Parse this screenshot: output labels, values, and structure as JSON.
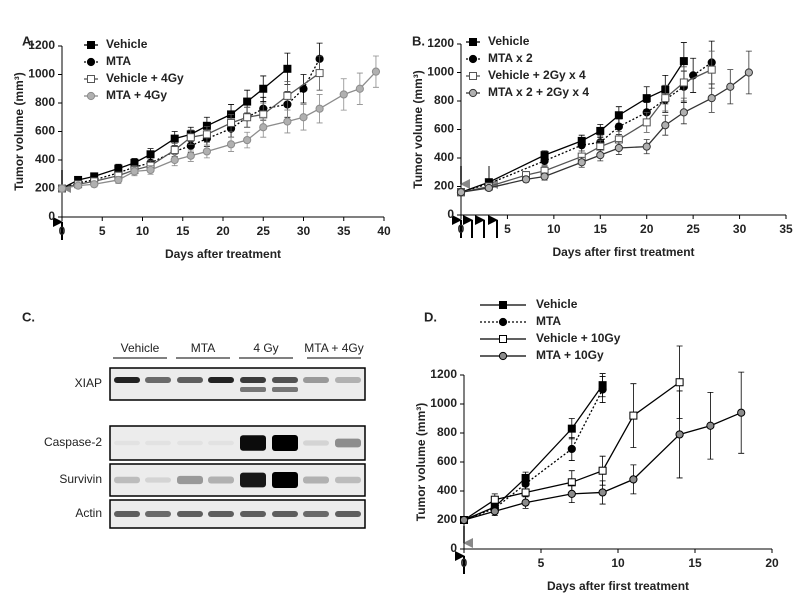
{
  "chart_data": [
    {
      "type": "line",
      "label": "A.",
      "xlabel": "Days after treatment",
      "ylabel": "Tumor volume (mm³)",
      "xlim": [
        0,
        40
      ],
      "xticks": [
        0,
        5,
        10,
        15,
        20,
        25,
        30,
        35,
        40
      ],
      "ylim": [
        0,
        1200
      ],
      "yticks": [
        0,
        200,
        400,
        600,
        800,
        1000,
        1200
      ],
      "series": [
        {
          "name": "Vehicle",
          "color": "#000000",
          "marker": "square",
          "marker_fill": "#000000",
          "dash": false,
          "x": [
            0,
            2,
            4,
            7,
            9,
            11,
            14,
            16,
            18,
            21,
            23,
            25,
            28
          ],
          "values": [
            200,
            260,
            285,
            340,
            380,
            440,
            550,
            580,
            640,
            720,
            810,
            900,
            1040
          ],
          "errors": [
            15,
            20,
            20,
            30,
            30,
            40,
            50,
            50,
            60,
            70,
            80,
            90,
            110
          ]
        },
        {
          "name": "MTA",
          "color": "#000000",
          "marker": "circle",
          "marker_fill": "#000000",
          "dash": true,
          "x": [
            0,
            2,
            4,
            7,
            9,
            11,
            14,
            16,
            18,
            21,
            23,
            25,
            28,
            30,
            32
          ],
          "values": [
            200,
            240,
            260,
            310,
            350,
            380,
            460,
            500,
            550,
            620,
            700,
            760,
            790,
            900,
            1110
          ],
          "errors": [
            15,
            20,
            20,
            25,
            30,
            35,
            40,
            45,
            55,
            60,
            70,
            80,
            90,
            100,
            110
          ]
        },
        {
          "name": "Vehicle + 4Gy",
          "color": "#555555",
          "marker": "square",
          "marker_fill": "#ffffff",
          "dash": false,
          "x": [
            0,
            2,
            4,
            7,
            9,
            11,
            14,
            16,
            18,
            21,
            23,
            25,
            28,
            32
          ],
          "values": [
            200,
            230,
            250,
            290,
            330,
            360,
            470,
            560,
            580,
            660,
            700,
            720,
            850,
            1010
          ],
          "errors": [
            15,
            20,
            20,
            25,
            30,
            35,
            45,
            50,
            55,
            60,
            70,
            80,
            100,
            120
          ]
        },
        {
          "name": "MTA + 4Gy",
          "color": "#8c8c8c",
          "marker": "circle",
          "marker_fill": "#b0b0b0",
          "dash": false,
          "x": [
            0,
            2,
            4,
            7,
            9,
            11,
            14,
            16,
            18,
            21,
            23,
            25,
            28,
            30,
            32,
            35,
            37,
            39
          ],
          "values": [
            200,
            220,
            230,
            260,
            320,
            330,
            400,
            430,
            460,
            510,
            540,
            630,
            670,
            700,
            760,
            860,
            900,
            1020
          ],
          "errors": [
            15,
            15,
            20,
            25,
            30,
            30,
            40,
            40,
            45,
            50,
            55,
            70,
            80,
            90,
            100,
            110,
            110,
            110
          ]
        }
      ]
    },
    {
      "type": "line",
      "label": "B.",
      "xlabel": "Days after first treatment",
      "ylabel": "Tumor volume (mm³)",
      "xlim": [
        0,
        35
      ],
      "xticks": [
        0,
        5,
        10,
        15,
        20,
        25,
        30,
        35
      ],
      "ylim": [
        0,
        1200
      ],
      "yticks": [
        0,
        200,
        400,
        600,
        800,
        1000,
        1200
      ],
      "series": [
        {
          "name": "Vehicle",
          "color": "#000000",
          "marker": "square",
          "marker_fill": "#000000",
          "dash": false,
          "x": [
            0,
            3,
            9,
            13,
            15,
            17,
            20,
            22,
            24
          ],
          "values": [
            160,
            230,
            420,
            520,
            590,
            700,
            820,
            880,
            1080
          ],
          "errors": [
            10,
            15,
            30,
            40,
            45,
            60,
            80,
            100,
            130
          ]
        },
        {
          "name": "MTA x 2",
          "color": "#000000",
          "marker": "circle",
          "marker_fill": "#000000",
          "dash": true,
          "x": [
            0,
            3,
            9,
            13,
            15,
            17,
            20,
            22,
            24,
            25,
            27
          ],
          "values": [
            160,
            220,
            380,
            490,
            510,
            620,
            720,
            810,
            900,
            980,
            1070
          ],
          "errors": [
            10,
            15,
            30,
            40,
            45,
            55,
            70,
            90,
            110,
            120,
            150
          ]
        },
        {
          "name": "Vehicle + 2Gy x 4",
          "color": "#555555",
          "marker": "square",
          "marker_fill": "#ffffff",
          "dash": false,
          "x": [
            0,
            3,
            7,
            9,
            13,
            15,
            17,
            20,
            22,
            24,
            27
          ],
          "values": [
            160,
            200,
            280,
            310,
            410,
            480,
            530,
            650,
            820,
            930,
            1020
          ],
          "errors": [
            10,
            15,
            25,
            30,
            40,
            45,
            55,
            70,
            90,
            110,
            130
          ]
        },
        {
          "name": "MTA x 2 + 2Gy x 4",
          "color": "#333333",
          "marker": "circle",
          "marker_fill": "#b0b0b0",
          "dash": false,
          "x": [
            0,
            3,
            7,
            9,
            13,
            15,
            17,
            20,
            22,
            24,
            27,
            29,
            31
          ],
          "values": [
            160,
            190,
            250,
            270,
            370,
            420,
            470,
            480,
            630,
            720,
            820,
            900,
            1000
          ],
          "errors": [
            10,
            15,
            20,
            25,
            35,
            40,
            45,
            50,
            70,
            80,
            100,
            120,
            150
          ]
        }
      ]
    },
    {
      "type": "line",
      "label": "D.",
      "xlabel": "Days after first treatment",
      "ylabel": "Tumor volume (mm³)",
      "xlim": [
        0,
        20
      ],
      "xticks": [
        0,
        5,
        10,
        15,
        20
      ],
      "ylim": [
        0,
        1200
      ],
      "yticks": [
        0,
        200,
        400,
        600,
        800,
        1000,
        1200
      ],
      "series": [
        {
          "name": "Vehicle",
          "color": "#000000",
          "marker": "square",
          "marker_fill": "#000000",
          "dash": false,
          "x": [
            0,
            2,
            4,
            7,
            9
          ],
          "values": [
            200,
            290,
            490,
            830,
            1130
          ],
          "errors": [
            10,
            30,
            40,
            70,
            80
          ]
        },
        {
          "name": "MTA",
          "color": "#000000",
          "marker": "circle",
          "marker_fill": "#000000",
          "dash": true,
          "x": [
            0,
            2,
            4,
            7,
            9
          ],
          "values": [
            200,
            280,
            450,
            690,
            1100
          ],
          "errors": [
            10,
            30,
            40,
            80,
            90
          ]
        },
        {
          "name": "Vehicle + 10Gy",
          "color": "#000000",
          "marker": "square",
          "marker_fill": "#ffffff",
          "dash": false,
          "x": [
            0,
            2,
            4,
            7,
            9,
            11,
            14
          ],
          "values": [
            200,
            340,
            390,
            460,
            540,
            920,
            1150
          ],
          "errors": [
            10,
            40,
            60,
            80,
            100,
            220,
            250
          ]
        },
        {
          "name": "MTA + 10Gy",
          "color": "#000000",
          "marker": "circle",
          "marker_fill": "#8c8c8c",
          "dash": false,
          "x": [
            0,
            2,
            4,
            7,
            9,
            11,
            14,
            16,
            18
          ],
          "values": [
            200,
            260,
            320,
            380,
            390,
            480,
            790,
            850,
            940
          ],
          "errors": [
            10,
            30,
            40,
            60,
            80,
            100,
            300,
            230,
            280
          ]
        }
      ]
    }
  ],
  "blot": {
    "label": "C.",
    "groups": [
      "Vehicle",
      "MTA",
      "4 Gy",
      "MTA + 4Gy"
    ],
    "rows": [
      "XIAP",
      "Caspase-2",
      "Survivin",
      "Actin"
    ]
  }
}
